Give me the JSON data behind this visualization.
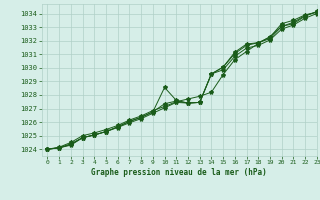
{
  "title": "Graphe pression niveau de la mer (hPa)",
  "bg_color": "#d6eee8",
  "grid_color": "#b0d0c8",
  "line_color": "#1a5c1a",
  "xlim": [
    -0.5,
    23
  ],
  "ylim": [
    1023.5,
    1034.7
  ],
  "yticks": [
    1024,
    1025,
    1026,
    1027,
    1028,
    1029,
    1030,
    1031,
    1032,
    1033,
    1034
  ],
  "xticks": [
    0,
    1,
    2,
    3,
    4,
    5,
    6,
    7,
    8,
    9,
    10,
    11,
    12,
    13,
    14,
    15,
    16,
    17,
    18,
    19,
    20,
    21,
    22,
    23
  ],
  "line1_x": [
    0,
    1,
    2,
    3,
    4,
    5,
    6,
    7,
    8,
    9,
    10,
    11,
    12,
    13,
    14,
    15,
    16,
    17,
    18,
    19,
    20,
    21,
    22,
    23
  ],
  "line1_y": [
    1024.0,
    1024.15,
    1024.5,
    1025.0,
    1025.2,
    1025.45,
    1025.75,
    1026.15,
    1026.45,
    1026.85,
    1027.15,
    1027.5,
    1027.7,
    1027.9,
    1028.2,
    1029.5,
    1030.6,
    1031.2,
    1031.8,
    1032.3,
    1033.05,
    1033.25,
    1033.8,
    1034.15
  ],
  "line2_x": [
    0,
    1,
    2,
    3,
    4,
    5,
    6,
    7,
    8,
    9,
    10,
    11,
    12,
    13,
    14,
    15,
    16,
    17,
    18,
    19,
    20,
    21,
    22,
    23
  ],
  "line2_y": [
    1024.0,
    1024.1,
    1024.4,
    1024.85,
    1025.05,
    1025.3,
    1025.65,
    1026.05,
    1026.35,
    1026.75,
    1027.35,
    1027.55,
    1027.4,
    1027.45,
    1029.55,
    1030.05,
    1031.15,
    1031.75,
    1031.85,
    1032.25,
    1033.25,
    1033.5,
    1033.9,
    1034.1
  ],
  "line3_x": [
    0,
    1,
    2,
    3,
    4,
    5,
    6,
    7,
    8,
    9,
    10,
    11,
    12,
    13,
    14,
    15,
    16,
    17,
    18,
    19,
    20,
    21,
    22,
    23
  ],
  "line3_y": [
    1024.0,
    1024.1,
    1024.35,
    1024.85,
    1025.05,
    1025.3,
    1025.65,
    1026.05,
    1026.35,
    1026.75,
    1028.55,
    1027.6,
    1027.4,
    1027.45,
    1029.55,
    1030.05,
    1031.05,
    1031.65,
    1031.85,
    1032.15,
    1033.05,
    1033.35,
    1033.85,
    1034.1
  ],
  "line4_x": [
    0,
    1,
    2,
    3,
    4,
    5,
    6,
    7,
    8,
    9,
    10,
    11,
    12,
    13,
    14,
    15,
    16,
    17,
    18,
    19,
    20,
    21,
    22,
    23
  ],
  "line4_y": [
    1024.0,
    1024.1,
    1024.3,
    1024.85,
    1025.05,
    1025.3,
    1025.6,
    1025.95,
    1026.25,
    1026.65,
    1027.05,
    1027.45,
    1027.4,
    1027.45,
    1029.55,
    1029.85,
    1030.85,
    1031.45,
    1031.65,
    1032.05,
    1032.85,
    1033.15,
    1033.65,
    1034.0
  ]
}
